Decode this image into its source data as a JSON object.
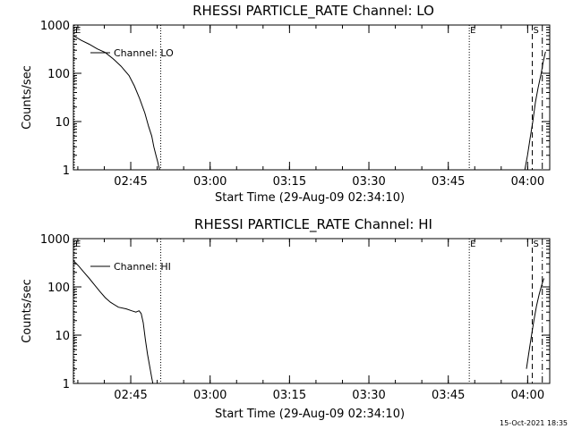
{
  "footer": {
    "timestamp": "15-Oct-2021 18:35"
  },
  "chart_data": [
    {
      "type": "line",
      "title": "RHESSI PARTICLE_RATE Channel: LO",
      "xlabel": "Start Time (29-Aug-09 02:34:10)",
      "ylabel": "Counts/sec",
      "yscale": "log",
      "ylim": [
        1,
        1000
      ],
      "y_ticks": [
        "1",
        "10",
        "100",
        "1000"
      ],
      "xlim_min": [
        0,
        90
      ],
      "x_ticks": [
        "02:45",
        "03:00",
        "03:15",
        "03:30",
        "03:45",
        "04:00"
      ],
      "legend": "Channel: LO",
      "markers": [
        {
          "label": "E",
          "style": "dotted",
          "x_min": 0
        },
        {
          "label": "",
          "style": "dotted",
          "x_min": 16.5
        },
        {
          "label": "E",
          "style": "dotted",
          "x_min": 74.8
        },
        {
          "label": "S",
          "style": "dashed",
          "x_min": 86.7
        },
        {
          "label": "",
          "style": "dashdot",
          "x_min": 88.6
        }
      ],
      "series": [
        {
          "name": "Channel: LO",
          "segments": [
            {
              "x_min": [
                0.0,
                1.5,
                3.0,
                4.5,
                6.0,
                7.5,
                9.0,
                10.5,
                11.5,
                12.5,
                13.5,
                14.2,
                14.8,
                15.2,
                15.6,
                15.9,
                16.1,
                16.3
              ],
              "y": [
                600,
                480,
                400,
                320,
                270,
                200,
                140,
                90,
                55,
                30,
                15,
                8,
                5,
                3,
                2,
                1.5,
                1.2,
                1.0
              ]
            },
            {
              "x_min": [
                85.3,
                85.8,
                86.3,
                86.8,
                87.3,
                87.8,
                88.4,
                88.8,
                89.2
              ],
              "y": [
                1.0,
                2.0,
                4.5,
                10,
                25,
                50,
                100,
                180,
                280
              ]
            }
          ]
        }
      ]
    },
    {
      "type": "line",
      "title": "RHESSI PARTICLE_RATE Channel: HI",
      "xlabel": "Start Time (29-Aug-09 02:34:10)",
      "ylabel": "Counts/sec",
      "yscale": "log",
      "ylim": [
        1,
        1000
      ],
      "y_ticks": [
        "1",
        "10",
        "100",
        "1000"
      ],
      "xlim_min": [
        0,
        90
      ],
      "x_ticks": [
        "02:45",
        "03:00",
        "03:15",
        "03:30",
        "03:45",
        "04:00"
      ],
      "legend": "Channel: HI",
      "markers": [
        {
          "label": "E",
          "style": "dotted",
          "x_min": 0
        },
        {
          "label": "",
          "style": "dotted",
          "x_min": 16.5
        },
        {
          "label": "E",
          "style": "dotted",
          "x_min": 74.8
        },
        {
          "label": "S",
          "style": "dashed",
          "x_min": 86.7
        },
        {
          "label": "",
          "style": "dashdot",
          "x_min": 88.6
        }
      ],
      "series": [
        {
          "name": "Channel: HI",
          "segments": [
            {
              "x_min": [
                0.0,
                1.0,
                2.0,
                3.0,
                4.0,
                5.0,
                6.0,
                7.0,
                8.5,
                10.0,
                11.0,
                11.8,
                12.4,
                12.8,
                13.2,
                13.6,
                14.0,
                14.5,
                14.8,
                15.0
              ],
              "y": [
                350,
                270,
                200,
                150,
                110,
                80,
                60,
                48,
                38,
                35,
                32,
                30,
                32,
                28,
                18,
                8,
                4,
                2,
                1.3,
                1.0
              ]
            },
            {
              "x_min": [
                85.6,
                86.0,
                86.5,
                87.0,
                87.5,
                88.0,
                88.5,
                88.9
              ],
              "y": [
                2.0,
                4.0,
                9,
                20,
                40,
                70,
                110,
                150
              ]
            }
          ]
        }
      ]
    }
  ]
}
